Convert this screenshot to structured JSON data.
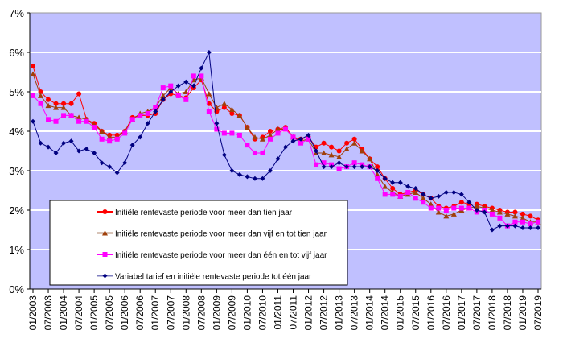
{
  "chart_data": {
    "type": "line",
    "title": "",
    "xlabel": "",
    "ylabel": "",
    "ylim": [
      0,
      7
    ],
    "yticks": [
      "0%",
      "1%",
      "2%",
      "3%",
      "4%",
      "5%",
      "6%",
      "7%"
    ],
    "xticks": [
      "01/2003",
      "07/2003",
      "01/2004",
      "07/2004",
      "01/2005",
      "07/2005",
      "01/2006",
      "07/2006",
      "01/2007",
      "07/2007",
      "01/2008",
      "07/2008",
      "01/2009",
      "07/2009",
      "01/2010",
      "07/2010",
      "01/2011",
      "07/2011",
      "01/2012",
      "07/2012",
      "01/2013",
      "07/2013",
      "01/2014",
      "07/2014",
      "01/2015",
      "07/2015",
      "01/2016",
      "07/2016",
      "01/2017",
      "07/2017",
      "01/2018",
      "07/2018",
      "01/2019",
      "07/2019"
    ],
    "x_start": "01/2003",
    "x_step_months": 3,
    "grid": true,
    "plot_background": "#c0c0ff",
    "legend_placement": "bottom-left inside",
    "series": [
      {
        "name": "Initiële rentevaste periode voor meer dan tien jaar",
        "color": "#ff0000",
        "marker": "circle",
        "values": [
          5.65,
          5.0,
          4.8,
          4.7,
          4.7,
          4.7,
          4.95,
          4.3,
          4.2,
          4.0,
          3.9,
          3.9,
          4.0,
          4.35,
          4.4,
          4.4,
          4.45,
          4.8,
          4.95,
          4.9,
          4.85,
          5.1,
          5.3,
          4.7,
          4.5,
          4.6,
          4.45,
          4.4,
          4.1,
          3.8,
          3.85,
          4.0,
          4.05,
          4.1,
          3.85,
          3.8,
          3.85,
          3.6,
          3.7,
          3.6,
          3.5,
          3.7,
          3.8,
          3.55,
          3.3,
          3.1,
          2.8,
          2.55,
          2.4,
          2.45,
          2.5,
          2.4,
          2.3,
          2.1,
          2.05,
          2.1,
          2.2,
          2.15,
          2.15,
          2.1,
          2.05,
          2.0,
          1.95,
          1.95,
          1.9,
          1.85,
          1.75
        ]
      },
      {
        "name": "Initiële rentevaste periode voor meer dan vijf en tot tien jaar",
        "color": "#a0400a",
        "marker": "triangle",
        "values": [
          5.45,
          4.9,
          4.65,
          4.6,
          4.6,
          4.4,
          4.35,
          4.3,
          4.15,
          4.0,
          3.85,
          3.85,
          4.0,
          4.3,
          4.45,
          4.5,
          4.6,
          4.9,
          5.1,
          4.95,
          5.0,
          5.3,
          5.35,
          4.95,
          4.6,
          4.7,
          4.55,
          4.4,
          4.1,
          3.85,
          3.8,
          3.9,
          4.05,
          4.05,
          3.85,
          3.75,
          3.8,
          3.45,
          3.45,
          3.4,
          3.35,
          3.55,
          3.7,
          3.5,
          3.3,
          2.9,
          2.6,
          2.45,
          2.35,
          2.4,
          2.45,
          2.3,
          2.15,
          1.95,
          1.85,
          1.9,
          2.0,
          2.05,
          2.1,
          2.05,
          2.0,
          1.95,
          1.9,
          1.85,
          1.8,
          1.7,
          1.7
        ]
      },
      {
        "name": "Initiële rentevaste periode voor meer dan één en tot vijf jaar",
        "color": "#ff00ff",
        "marker": "square",
        "values": [
          4.9,
          4.7,
          4.3,
          4.25,
          4.4,
          4.4,
          4.25,
          4.25,
          4.1,
          3.8,
          3.75,
          3.8,
          3.95,
          4.3,
          4.4,
          4.45,
          4.6,
          5.1,
          5.15,
          4.9,
          4.8,
          5.4,
          5.4,
          4.5,
          4.05,
          3.95,
          3.95,
          3.9,
          3.65,
          3.45,
          3.45,
          3.8,
          3.95,
          4.05,
          3.85,
          3.7,
          3.8,
          3.15,
          3.2,
          3.15,
          3.05,
          3.1,
          3.2,
          3.15,
          3.1,
          2.8,
          2.4,
          2.4,
          2.35,
          2.45,
          2.3,
          2.2,
          2.05,
          2.05,
          2.0,
          2.05,
          2.05,
          2.05,
          1.95,
          2.0,
          1.9,
          1.8,
          1.6,
          1.7,
          1.7,
          1.65,
          1.7
        ]
      },
      {
        "name": "Variabel tarief en initiële rentevaste periode tot één jaar",
        "color": "#000080",
        "marker": "diamond",
        "values": [
          4.25,
          3.7,
          3.6,
          3.45,
          3.7,
          3.75,
          3.5,
          3.55,
          3.45,
          3.2,
          3.1,
          2.95,
          3.2,
          3.65,
          3.85,
          4.2,
          4.5,
          4.8,
          5.0,
          5.15,
          5.25,
          5.15,
          5.6,
          6.0,
          4.2,
          3.4,
          3.0,
          2.9,
          2.85,
          2.8,
          2.8,
          3.0,
          3.3,
          3.6,
          3.75,
          3.8,
          3.9,
          3.5,
          3.1,
          3.1,
          3.2,
          3.1,
          3.1,
          3.1,
          3.1,
          3.0,
          2.8,
          2.7,
          2.7,
          2.6,
          2.55,
          2.4,
          2.3,
          2.35,
          2.45,
          2.45,
          2.4,
          2.2,
          2.0,
          1.95,
          1.5,
          1.6,
          1.6,
          1.6,
          1.55,
          1.55,
          1.55
        ]
      }
    ]
  }
}
